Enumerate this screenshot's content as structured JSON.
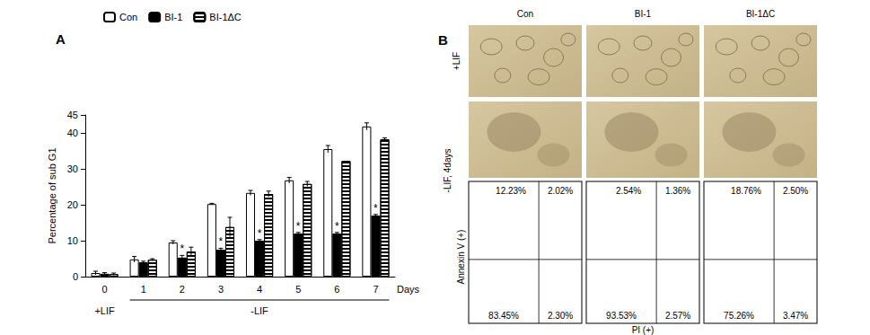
{
  "chart_data": {
    "type": "bar",
    "panel_label": "A",
    "categories": [
      "0",
      "1",
      "2",
      "3",
      "4",
      "5",
      "6",
      "7"
    ],
    "x_label": "Days",
    "y_label": "Percentage of sub G1",
    "series": [
      {
        "name": "Con",
        "color": "#ffffff",
        "values": [
          1.0,
          4.8,
          9.5,
          20.2,
          23.3,
          26.8,
          35.5,
          41.8
        ],
        "errors": [
          0.5,
          0.8,
          0.5,
          0.2,
          0.7,
          0.8,
          1.0,
          1.0
        ]
      },
      {
        "name": "BI-1",
        "color": "#000000",
        "values": [
          0.8,
          4.0,
          5.3,
          7.5,
          10.0,
          12.0,
          12.0,
          17.0
        ],
        "errors": [
          0.3,
          0.3,
          0.6,
          0.4,
          0.3,
          0.3,
          0.3,
          0.3
        ]
      },
      {
        "name": "BI-1ΔC",
        "color": "#ffffff",
        "values": [
          0.7,
          4.7,
          7.0,
          13.8,
          23.0,
          25.8,
          32.2,
          38.2
        ],
        "errors": [
          0.3,
          0.3,
          1.2,
          2.7,
          0.8,
          0.7,
          0.0,
          0.4
        ]
      }
    ],
    "condition_labels": [
      {
        "text": "+LIF",
        "categories": [
          "0"
        ]
      },
      {
        "text": "-LIF",
        "categories": [
          "1",
          "2",
          "3",
          "4",
          "5",
          "6",
          "7"
        ]
      }
    ],
    "annotations": [
      {
        "text": "*",
        "series": "BI-1",
        "categories": [
          "2",
          "3",
          "4",
          "5",
          "6",
          "7"
        ]
      }
    ],
    "ylim": [
      0,
      45
    ],
    "yticks": [
      0,
      10,
      20,
      30,
      40
    ],
    "grid": false,
    "legend": "top"
  },
  "panel_b": {
    "panel_label": "B",
    "columns": [
      "Con",
      "BI-1",
      "BI-1ΔC"
    ],
    "rows": [
      "+LIF",
      "-LIF, 4days"
    ],
    "flow_cytometry": {
      "x_label": "PI (+)",
      "y_label": "Annexin V (+)",
      "quadrants": [
        {
          "upper_left": "12.23%",
          "upper_right": "2.02%",
          "lower_left": "83.45%",
          "lower_right": "2.30%"
        },
        {
          "upper_left": "2.54%",
          "upper_right": "1.36%",
          "lower_left": "93.53%",
          "lower_right": "2.57%"
        },
        {
          "upper_left": "18.76%",
          "upper_right": "2.50%",
          "lower_left": "75.26%",
          "lower_right": "3.47%"
        }
      ]
    }
  }
}
